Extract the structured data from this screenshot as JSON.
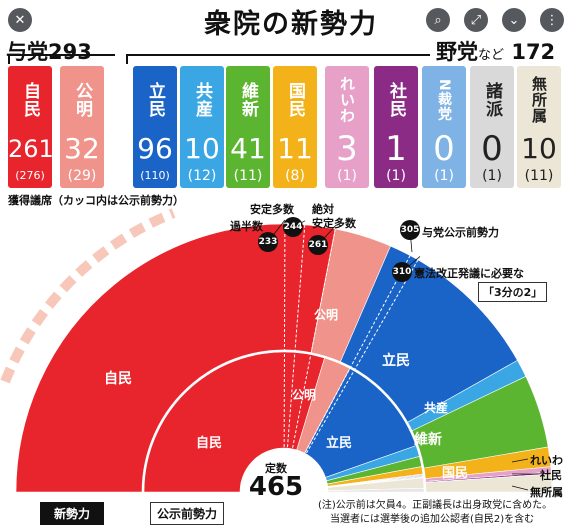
{
  "title": "衆院の新勢力",
  "ruling": {
    "label": "与党",
    "total": "293"
  },
  "opposition": {
    "label": "野党",
    "nado": "など",
    "total": "172"
  },
  "legend_note": "獲得議席（カッコ内は公示前勢力）",
  "markers": [
    {
      "value": "233",
      "label": "過半数"
    },
    {
      "value": "244",
      "label": "安定多数"
    },
    {
      "value": "261",
      "label": "絶対\n安定多数"
    },
    {
      "value": "305",
      "label": "与党公示前勢力"
    },
    {
      "value": "310",
      "label": "憲法改正発議に必要な"
    }
  ],
  "box_3bun": "「3分の2」",
  "outer_tag": "新勢力",
  "inner_tag": "公示前勢力",
  "center": {
    "label": "定数",
    "value": "465"
  },
  "arc_labels": {
    "jimin_outer": "自民",
    "komei_outer": "公明",
    "rikken_outer": "立民",
    "kyosan_outer": "共産",
    "ishin_outer": "維新",
    "kokumin_outer": "国民",
    "jimin_inner": "自民",
    "komei_inner": "公明",
    "rikken_inner": "立民",
    "reiwa": "れいわ",
    "shamin": "社民",
    "mushozoku": "無所属"
  },
  "footnote": {
    "line1": "(注)公示前は欠員4。正副議長は出身政党に含めた。",
    "line2": "当選者には選挙後の追加公認者(自民2)を含む"
  },
  "colors": {
    "jimin": "#e8242c",
    "komei": "#f0938a",
    "rikken": "#1a63c7",
    "kyosan": "#3aa6e4",
    "ishin": "#5cb531",
    "kokumin": "#f4b21a",
    "reiwa": "#e7a0c8",
    "shamin": "#8b2b86",
    "nkoku": "#7fb2e5",
    "shoha": "#d9d9d9",
    "mushozoku": "#ebe6d5"
  },
  "chart_data": {
    "type": "pie",
    "title": "衆院の新勢力",
    "subtitle": "獲得議席（カッコ内は公示前勢力）",
    "categories": [
      "自民",
      "公明",
      "立民",
      "共産",
      "維新",
      "国民",
      "れいわ",
      "社民",
      "N裁党",
      "諸派",
      "無所属"
    ],
    "series": [
      {
        "name": "新勢力",
        "values": [
          261,
          32,
          96,
          10,
          41,
          11,
          3,
          1,
          0,
          0,
          10
        ]
      },
      {
        "name": "公示前勢力",
        "values": [
          276,
          29,
          110,
          12,
          11,
          8,
          1,
          1,
          1,
          1,
          11
        ]
      }
    ],
    "previous_labels": [
      "(276)",
      "(29)",
      "(110)",
      "(12)",
      "(11)",
      "(8)",
      "(1)",
      "(1)",
      "(1)",
      "(1)",
      "(11)"
    ],
    "total_seats": 465,
    "thresholds": [
      233,
      244,
      261,
      305,
      310
    ]
  },
  "cards": [
    {
      "name": "自民",
      "seats": "261",
      "prev": "(276)",
      "color": "#e8242c"
    },
    {
      "name": "公明",
      "seats": "32",
      "prev": "(29)",
      "color": "#f0938a"
    },
    {
      "name": "立民",
      "seats": "96",
      "prev": "(110)",
      "color": "#1a63c7"
    },
    {
      "name": "共産",
      "seats": "10",
      "prev": "(12)",
      "color": "#3aa6e4"
    },
    {
      "name": "維新",
      "seats": "41",
      "prev": "(11)",
      "color": "#5cb531"
    },
    {
      "name": "国民",
      "seats": "11",
      "prev": "(8)",
      "color": "#f4b21a"
    },
    {
      "name": "れいわ",
      "seats": "3",
      "prev": "(1)",
      "color": "#e7a0c8"
    },
    {
      "name": "社民",
      "seats": "1",
      "prev": "(1)",
      "color": "#8b2b86"
    },
    {
      "name": "N裁党",
      "seats": "0",
      "prev": "(1)",
      "color": "#7fb2e5"
    },
    {
      "name": "諸派",
      "seats": "0",
      "prev": "(1)",
      "color": "#d9d9d9"
    },
    {
      "name": "無所属",
      "seats": "10",
      "prev": "(11)",
      "color": "#ebe6d5"
    }
  ]
}
